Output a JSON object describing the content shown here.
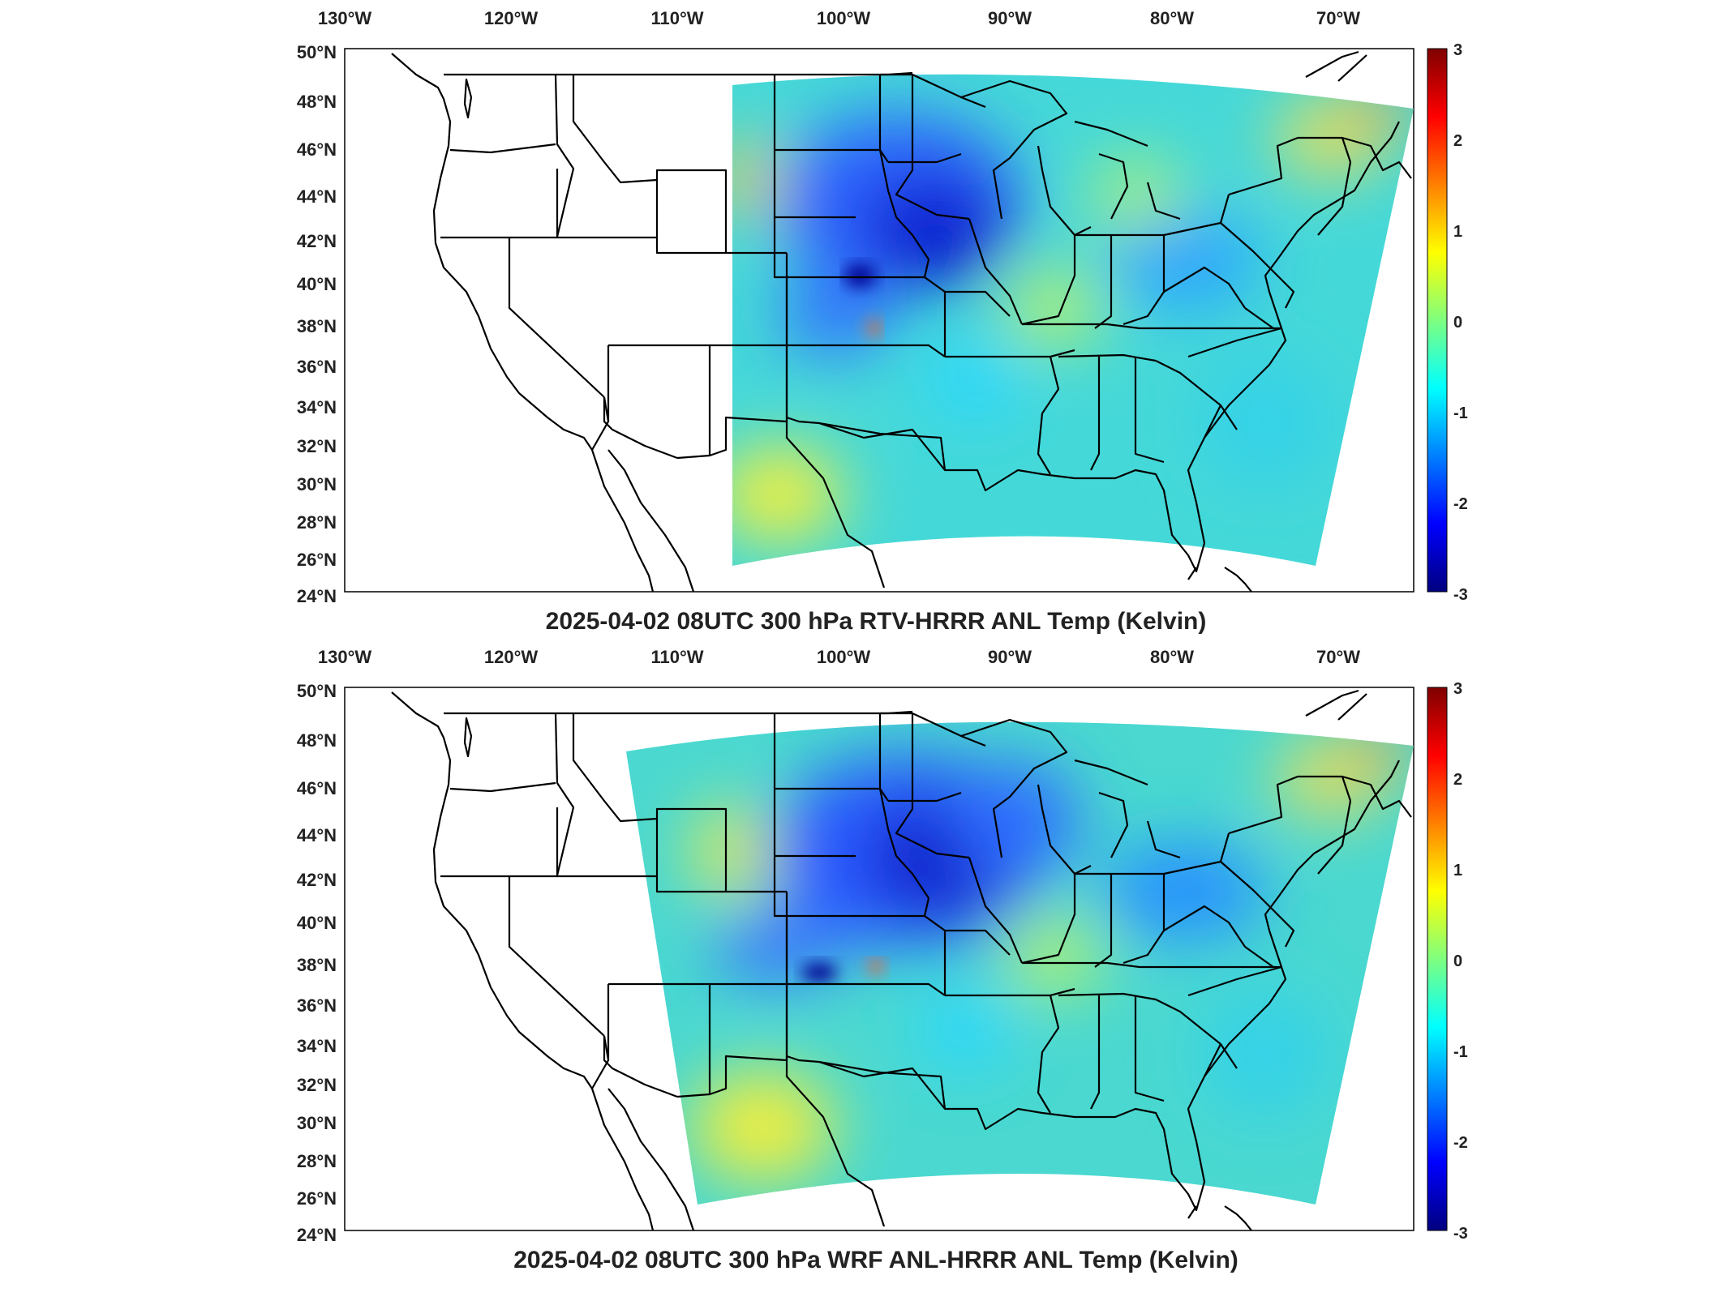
{
  "panels": [
    {
      "title": "2025-04-02 08UTC 300 hPa RTV-HRRR ANL Temp (Kelvin)",
      "lon_labels": [
        "130°W",
        "120°W",
        "110°W",
        "100°W",
        "90°W",
        "80°W",
        "70°W"
      ],
      "lat_labels": [
        "50°N",
        "48°N",
        "46°N",
        "44°N",
        "42°N",
        "40°N",
        "38°N",
        "36°N",
        "34°N",
        "32°N",
        "30°N",
        "28°N",
        "26°N",
        "24°N"
      ],
      "colorbar": {
        "min": -3,
        "max": 3,
        "ticks": [
          "3",
          "2",
          "1",
          "0",
          "-1",
          "-2",
          "-3"
        ]
      },
      "cold_anomaly_center": "Nebraska / Iowa",
      "domain_edge": "east of ~107°W"
    },
    {
      "title": "2025-04-02 08UTC 300 hPa WRF ANL-HRRR ANL Temp (Kelvin)",
      "lon_labels": [
        "130°W",
        "120°W",
        "110°W",
        "100°W",
        "90°W",
        "80°W",
        "70°W"
      ],
      "lat_labels": [
        "50°N",
        "48°N",
        "46°N",
        "44°N",
        "42°N",
        "40°N",
        "38°N",
        "36°N",
        "34°N",
        "32°N",
        "30°N",
        "28°N",
        "26°N",
        "24°N"
      ],
      "colorbar": {
        "min": -3,
        "max": 3,
        "ticks": [
          "3",
          "2",
          "1",
          "0",
          "-1",
          "-2",
          "-3"
        ]
      },
      "cold_anomaly_center": "Nebraska / Iowa",
      "domain_edge": "east of ~113°W"
    }
  ],
  "colors": {
    "colormap": [
      "#00007f",
      "#0000ff",
      "#007fff",
      "#00ffff",
      "#7fff7f",
      "#ffff00",
      "#ff7f00",
      "#ff0000",
      "#7f0000"
    ],
    "field_base": "#4fe0c8",
    "borders": "#000000"
  }
}
